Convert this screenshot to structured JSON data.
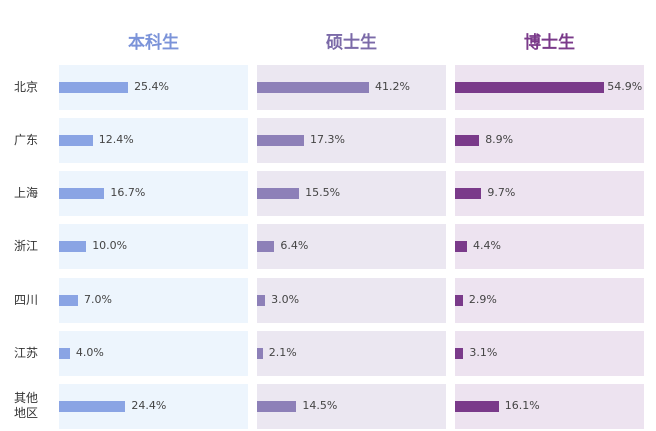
{
  "chart_data": {
    "type": "bar",
    "orientation": "horizontal",
    "categories": [
      "北京",
      "广东",
      "上海",
      "浙江",
      "四川",
      "江苏",
      "其他\n地区"
    ],
    "panels": [
      {
        "title": "本科生",
        "values": [
          25.4,
          12.4,
          16.7,
          10.0,
          7.0,
          4.0,
          24.4
        ],
        "labels": [
          "25.4%",
          "12.4%",
          "16.7%",
          "10.0%",
          "7.0%",
          "4.0%",
          "24.4%"
        ],
        "bar_color": "#8aa4e4",
        "bg_color": "#edf5fd",
        "title_color": "#7b93d9"
      },
      {
        "title": "硕士生",
        "values": [
          41.2,
          17.3,
          15.5,
          6.4,
          3.0,
          2.1,
          14.5
        ],
        "labels": [
          "41.2%",
          "17.3%",
          "15.5%",
          "6.4%",
          "3.0%",
          "2.1%",
          "14.5%"
        ],
        "bar_color": "#8d80b8",
        "bg_color": "#ebe7f1",
        "title_color": "#7b6aa8"
      },
      {
        "title": "博士生",
        "values": [
          54.9,
          8.9,
          9.7,
          4.4,
          2.9,
          3.1,
          16.1
        ],
        "labels": [
          "54.9%",
          "8.9%",
          "9.7%",
          "4.4%",
          "2.9%",
          "3.1%",
          "16.1%"
        ],
        "bar_color": "#7a3a8a",
        "bg_color": "#ede3f0",
        "title_color": "#7a3a8a"
      }
    ],
    "xlim": [
      0,
      69.5
    ],
    "grid": false,
    "legend": "none"
  }
}
